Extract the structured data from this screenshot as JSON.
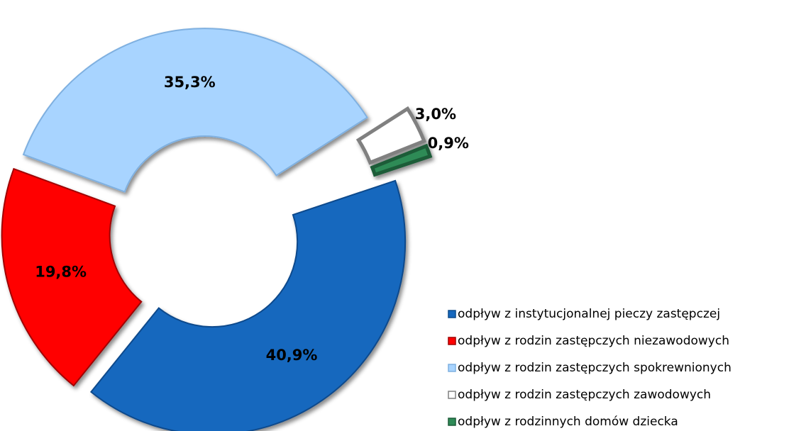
{
  "chart_data": {
    "type": "donut",
    "categories": [
      "odpływ z instytucjonalnej pieczy zastępczej",
      "odpływ z rodzin zastępczych niezawodowych",
      "odpływ z rodzin zastępczych spokrewnionych",
      "odpływ z rodzin zastępczych zawodowych",
      "odpływ z rodzinnych domów dziecka"
    ],
    "values": [
      40.9,
      19.8,
      35.3,
      3.0,
      0.9
    ],
    "value_labels": [
      "40,9%",
      "19,8%",
      "35,3%",
      "3,0%",
      "0,9%"
    ],
    "colors": [
      "#1668be",
      "#ff0000",
      "#a8d4ff",
      "#ffffff",
      "#2e8b57"
    ],
    "legend": "bottom-right"
  }
}
